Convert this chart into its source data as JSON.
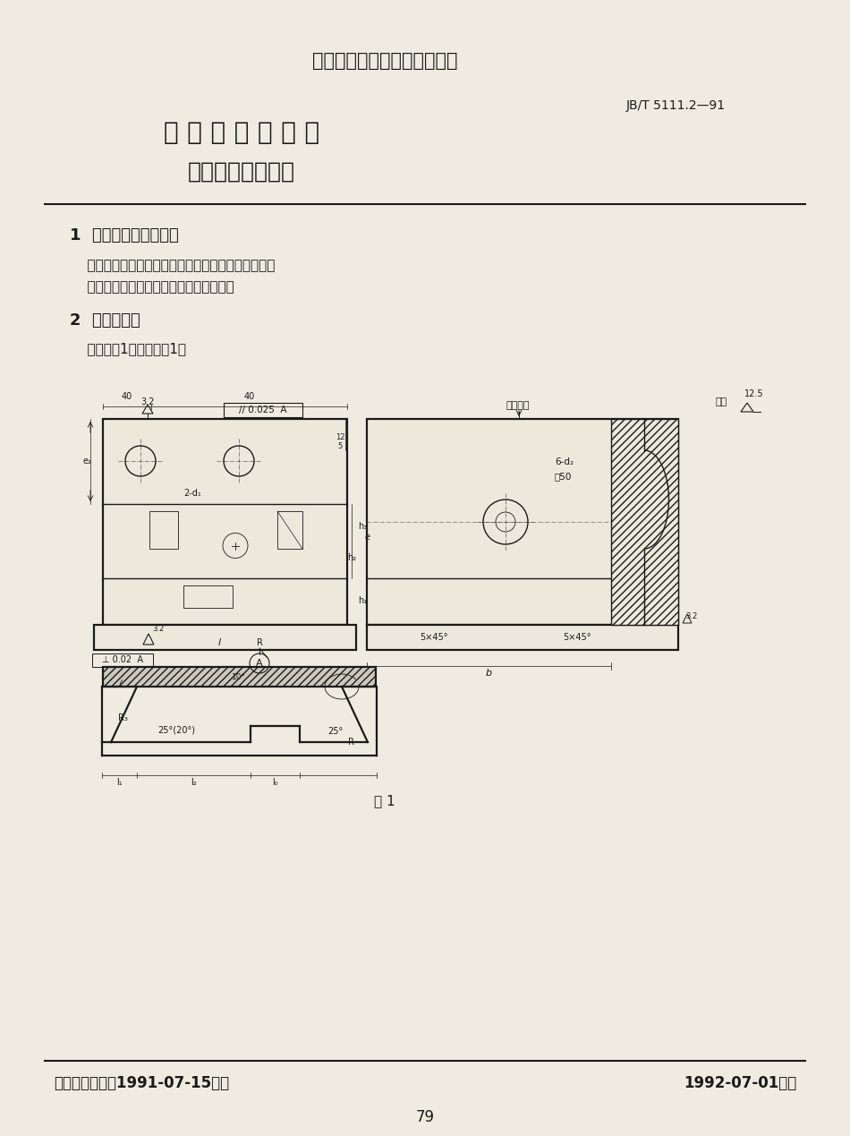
{
  "bg_color": "#f0ebe0",
  "title_line1": "中华人民共和国机械行业标准",
  "title_line2": "水 平 分 模 平 锻 机",
  "title_line3": "凹模体结构与尺寸",
  "std_number": "JB/T 5111.2—91",
  "section1_title": "1  主题内容与适用范围",
  "section1_body1": "    本标准规定了水平分模平锻机凹模体的结构与尺寸。",
  "section1_body2": "    本标准适用于水平分模平锻机用凹模体。",
  "section2_title": "2  结构与尺寸",
  "section2_body": "    结构见图1，尺寸见表1。",
  "fig_caption": "图 1",
  "footer_left": "机械电子工业部1991-07-15批准",
  "footer_right": "1992-07-01实施",
  "page_number": "79",
  "label_xianwei": "纤维方向",
  "label_qita": "其余",
  "label_shen": "深50",
  "label_6d2": "6-d₂",
  "label_2d1": "2-d₁"
}
